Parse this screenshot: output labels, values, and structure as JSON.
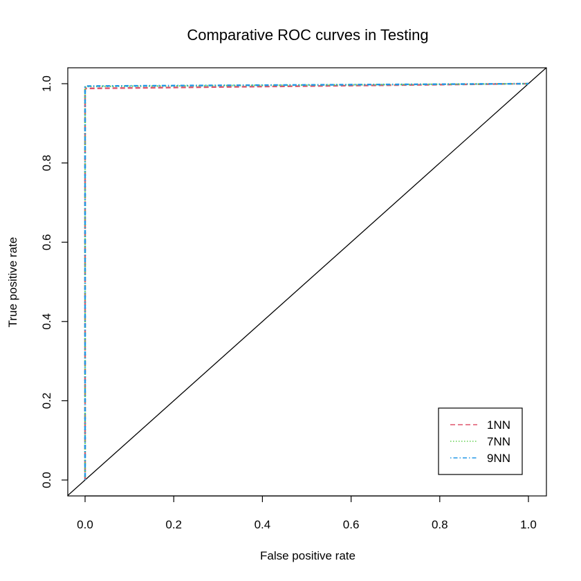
{
  "chart_data": {
    "type": "line",
    "title": "Comparative ROC curves in Testing",
    "xlabel": "False positive rate",
    "ylabel": "True positive rate",
    "xlim": [
      0,
      1
    ],
    "ylim": [
      0,
      1
    ],
    "x_ticks": [
      "0.0",
      "0.2",
      "0.4",
      "0.6",
      "0.8",
      "1.0"
    ],
    "y_ticks": [
      "0.0",
      "0.2",
      "0.4",
      "0.6",
      "0.8",
      "1.0"
    ],
    "grid": false,
    "legend_position": "bottom-right",
    "reference_line": {
      "x": [
        0,
        1
      ],
      "y": [
        0,
        1
      ],
      "color": "#000000"
    },
    "series": [
      {
        "name": "1NN",
        "color": "#DF536B",
        "dash": "dashed",
        "x": [
          0.0,
          0.0,
          0.003,
          1.0
        ],
        "y": [
          0.0,
          0.986,
          0.988,
          1.0
        ]
      },
      {
        "name": "7NN",
        "color": "#61D04F",
        "dash": "dotted",
        "x": [
          0.0,
          0.0,
          0.004,
          1.0
        ],
        "y": [
          0.0,
          0.991,
          0.993,
          1.0
        ]
      },
      {
        "name": "9NN",
        "color": "#2297E6",
        "dash": "dotdash",
        "x": [
          0.0,
          0.0,
          0.004,
          1.0
        ],
        "y": [
          0.0,
          0.992,
          0.994,
          1.0
        ]
      }
    ]
  }
}
